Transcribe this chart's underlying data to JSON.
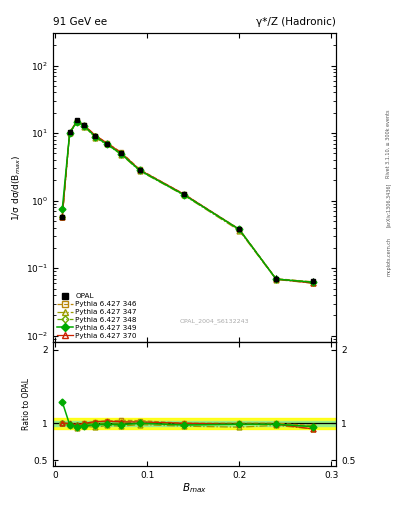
{
  "title_left": "91 GeV ee",
  "title_right": "γ*/Z (Hadronic)",
  "ylabel_main": "1/σ dσ/d(B_max)",
  "ylabel_ratio": "Ratio to OPAL",
  "xlabel": "B_{max}",
  "watermark": "OPAL_2004_S6132243",
  "rivet_label": "Rivet 3.1.10, ≥ 300k events",
  "arxiv_label": "[arXiv:1306.3436]",
  "mcplots_label": "mcplots.cern.ch",
  "x_data": [
    0.008,
    0.016,
    0.024,
    0.032,
    0.044,
    0.056,
    0.072,
    0.092,
    0.14,
    0.2,
    0.24,
    0.28
  ],
  "opal_y": [
    0.58,
    10.2,
    15.5,
    13.0,
    9.0,
    7.0,
    5.0,
    2.8,
    1.25,
    0.38,
    0.07,
    0.065
  ],
  "opal_yerr": [
    0.05,
    0.5,
    0.7,
    0.6,
    0.4,
    0.3,
    0.2,
    0.15,
    0.08,
    0.03,
    0.008,
    0.007
  ],
  "p346_y": [
    0.58,
    10.0,
    15.0,
    13.0,
    9.2,
    7.2,
    5.2,
    2.9,
    1.25,
    0.38,
    0.07,
    0.063
  ],
  "p347_y": [
    0.58,
    10.0,
    14.5,
    12.5,
    8.5,
    6.8,
    4.8,
    2.75,
    1.2,
    0.36,
    0.068,
    0.06
  ],
  "p348_y": [
    0.58,
    10.1,
    15.2,
    12.8,
    9.0,
    7.0,
    5.0,
    2.85,
    1.23,
    0.375,
    0.069,
    0.062
  ],
  "p349_y": [
    0.75,
    10.0,
    14.8,
    12.6,
    8.8,
    6.9,
    4.9,
    2.8,
    1.22,
    0.375,
    0.069,
    0.062
  ],
  "p370_y": [
    0.58,
    10.2,
    15.2,
    13.0,
    9.2,
    7.2,
    5.1,
    2.85,
    1.25,
    0.375,
    0.069,
    0.06
  ],
  "ratio_346": [
    1.0,
    0.98,
    0.968,
    1.0,
    1.022,
    1.029,
    1.04,
    1.036,
    1.0,
    1.0,
    1.0,
    0.969
  ],
  "ratio_347": [
    1.0,
    0.98,
    0.935,
    0.962,
    0.944,
    0.971,
    0.96,
    0.982,
    0.96,
    0.947,
    0.971,
    0.923
  ],
  "ratio_348": [
    1.0,
    0.99,
    0.981,
    0.985,
    1.0,
    1.0,
    1.0,
    1.018,
    0.984,
    0.987,
    0.986,
    0.954
  ],
  "ratio_349": [
    1.29,
    0.98,
    0.955,
    0.969,
    0.978,
    0.986,
    0.98,
    1.0,
    0.976,
    0.987,
    0.986,
    0.954
  ],
  "ratio_370": [
    1.0,
    1.0,
    0.981,
    1.0,
    1.022,
    1.029,
    1.02,
    1.018,
    1.0,
    0.987,
    0.986,
    0.923
  ],
  "band_yellow_lo": 0.925,
  "band_yellow_hi": 1.075,
  "band_green_lo": 0.965,
  "band_green_hi": 1.035,
  "color_opal": "#000000",
  "color_346": "#b8860b",
  "color_347": "#9b9b00",
  "color_348": "#6aaa00",
  "color_349": "#00aa00",
  "color_370": "#cc2200",
  "ylim_main": [
    0.008,
    300
  ],
  "ylim_ratio": [
    0.42,
    2.1
  ],
  "xlim": [
    -0.002,
    0.305
  ]
}
